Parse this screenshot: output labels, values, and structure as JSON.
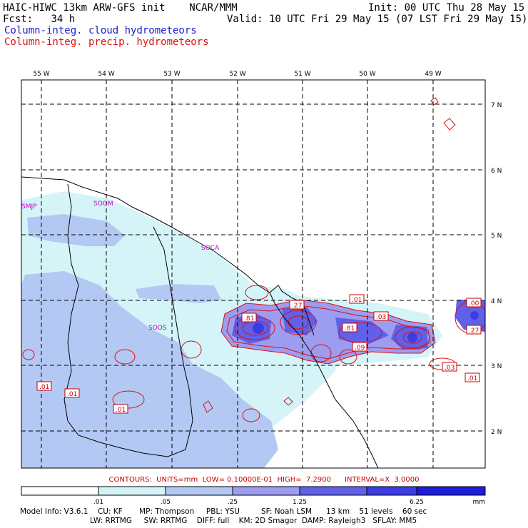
{
  "header": {
    "model": "HAIC-HIWC 13km ARW-GFS init",
    "org": "NCAR/MMM",
    "fcst_label": "Fcst:",
    "fcst_value": "34 h",
    "init": "Init: 00 UTC Thu 28 May 15",
    "valid": "Valid: 10 UTC Fri 29 May 15 (07 LST Fri 29 May 15)",
    "field1": "Column-integ. cloud hydrometeors",
    "field2": "Column-integ. precip. hydrometeors"
  },
  "map": {
    "lon_labels": [
      "55 W",
      "54 W",
      "53 W",
      "52 W",
      "51 W",
      "50 W",
      "49 W"
    ],
    "lat_labels": [
      "7 N",
      "6 N",
      "5 N",
      "4 N",
      "3 N",
      "2 N"
    ],
    "stations": [
      "SMJP",
      "SOCA",
      "SOOM",
      "SOOS"
    ],
    "contour_labels": [
      ".81",
      ".27",
      ".01",
      ".03",
      ".81",
      ".09",
      ".00",
      ".27",
      ".03",
      ".01",
      ".01",
      ".01",
      ".01"
    ]
  },
  "contours_info": "CONTOURS:  UNITS=mm  LOW= 0.10000E-01  HIGH=  7.2900      INTERVAL=X  3.0000",
  "colorbar": {
    "ticks": [
      ".01",
      ".05",
      ".25",
      "1.25",
      "6.25"
    ],
    "unit": "mm",
    "colors": [
      "#ffffff",
      "#d4f4f8",
      "#b4c8f4",
      "#9c9cf0",
      "#6060e8",
      "#3c3ce4",
      "#1c1cdc"
    ]
  },
  "model_info": {
    "line1": "Model Info: V3.6.1    CU: KF       MP: Thompson     PBL: YSU         SF: Noah LSM      13 km    51 levels    60 sec",
    "line2": "LW: RRTMG     SW: RRTMG    DIFF: full    KM: 2D Smagor  DAMP: Rayleigh3   SFLAY: MM5"
  }
}
